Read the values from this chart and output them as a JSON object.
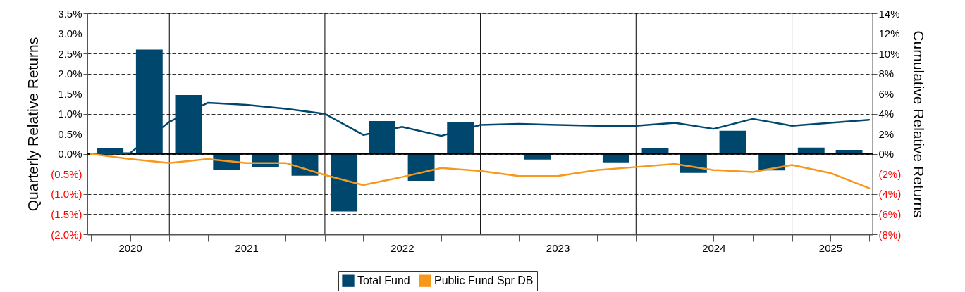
{
  "chart_data": {
    "type": "bar",
    "ylabel": "Quarterly Relative Returns",
    "y2label": "Cumulative Relative Returns",
    "xlim": [
      "2020-07-01",
      "2025-07-01"
    ],
    "xticks": [
      {
        "value": "2020-07-01",
        "label": null
      },
      {
        "value": "2020-10-01",
        "label": "2020"
      },
      {
        "value": "2021-01-01",
        "label": null
      },
      {
        "value": "2021-04-01",
        "label": null
      },
      {
        "value": "2021-07-01",
        "label": "2021"
      },
      {
        "value": "2021-10-01",
        "label": null
      },
      {
        "value": "2022-01-01",
        "label": null
      },
      {
        "value": "2022-04-01",
        "label": null
      },
      {
        "value": "2022-07-01",
        "label": "2022"
      },
      {
        "value": "2022-10-01",
        "label": null
      },
      {
        "value": "2023-01-01",
        "label": null
      },
      {
        "value": "2023-04-01",
        "label": null
      },
      {
        "value": "2023-07-01",
        "label": "2023"
      },
      {
        "value": "2023-10-01",
        "label": null
      },
      {
        "value": "2024-01-01",
        "label": null
      },
      {
        "value": "2024-04-01",
        "label": null
      },
      {
        "value": "2024-07-01",
        "label": "2024"
      },
      {
        "value": "2024-10-01",
        "label": null
      },
      {
        "value": "2025-01-01",
        "label": null
      },
      {
        "value": "2025-04-01",
        "label": "2025"
      },
      {
        "value": "2025-07-01",
        "label": null
      }
    ],
    "ylim": [
      -2,
      3.5
    ],
    "yticks": [
      {
        "value": -2,
        "label": "(2.0%)"
      },
      {
        "value": -1.5,
        "label": "(1.5%)"
      },
      {
        "value": -1,
        "label": "(1.0%)"
      },
      {
        "value": -0.5,
        "label": "(0.5%)"
      },
      {
        "value": 0,
        "label": "0.0%"
      },
      {
        "value": 0.5,
        "label": "0.5%"
      },
      {
        "value": 1,
        "label": "1.0%"
      },
      {
        "value": 1.5,
        "label": "1.5%"
      },
      {
        "value": 2,
        "label": "2.0%"
      },
      {
        "value": 2.5,
        "label": "2.5%"
      },
      {
        "value": 3,
        "label": "3.0%"
      },
      {
        "value": 3.5,
        "label": "3.5%"
      }
    ],
    "y2lim": [
      -8,
      14
    ],
    "y2ticks": [
      {
        "value": -8,
        "label": "(8%)"
      },
      {
        "value": -6,
        "label": "(6%)"
      },
      {
        "value": -4,
        "label": "(4%)"
      },
      {
        "value": -2,
        "label": "(2%)"
      },
      {
        "value": 0,
        "label": "0%"
      },
      {
        "value": 2,
        "label": "2%"
      },
      {
        "value": 4,
        "label": "4%"
      },
      {
        "value": 6,
        "label": "6%"
      },
      {
        "value": 8,
        "label": "8%"
      },
      {
        "value": 10,
        "label": "10%"
      },
      {
        "value": 12,
        "label": "12%"
      },
      {
        "value": 14,
        "label": "14%"
      }
    ],
    "grid": "y",
    "legend": "bottom",
    "ref_lines": [
      {
        "axis": "y",
        "value": 0,
        "color": "#000000"
      },
      {
        "axis": "x",
        "value": "2021-01-01",
        "color": "#000000"
      },
      {
        "axis": "x",
        "value": "2022-01-01",
        "color": "#000000"
      },
      {
        "axis": "x",
        "value": "2023-01-01",
        "color": "#000000"
      },
      {
        "axis": "x",
        "value": "2024-01-01",
        "color": "#000000"
      },
      {
        "axis": "x",
        "value": "2025-01-01",
        "color": "#000000"
      }
    ],
    "series": [
      {
        "name": "Total Fund",
        "color": "#00476e",
        "x": [
          "2020-08-15",
          "2020-11-15",
          "2021-02-15",
          "2021-05-15",
          "2021-08-15",
          "2021-11-15",
          "2022-02-15",
          "2022-05-15",
          "2022-08-15",
          "2022-11-15",
          "2023-02-15",
          "2023-05-15",
          "2023-08-15",
          "2023-11-15",
          "2024-02-15",
          "2024-05-15",
          "2024-08-15",
          "2024-11-15",
          "2025-02-15",
          "2025-05-15"
        ],
        "values": [
          0.15,
          2.6,
          1.47,
          -0.4,
          -0.32,
          -0.54,
          -1.43,
          0.82,
          -0.67,
          0.8,
          0.03,
          -0.14,
          null,
          -0.21,
          0.15,
          -0.47,
          0.58,
          -0.41,
          0.16,
          0.1
        ]
      },
      {
        "type": "line",
        "axis": "y2",
        "color": "#00476e",
        "x": [
          "2020-07-01",
          "2020-10-01",
          "2021-01-01",
          "2021-04-01",
          "2021-07-01",
          "2021-10-01",
          "2022-01-01",
          "2022-04-01",
          "2022-07-01",
          "2022-10-01",
          "2023-01-01",
          "2023-04-01",
          "2023-07-01",
          "2023-10-01",
          "2024-01-01",
          "2024-04-01",
          "2024-07-01",
          "2024-10-01",
          "2025-01-01",
          "2025-04-01",
          "2025-07-01"
        ],
        "values": [
          0,
          0.1,
          3.2,
          5.1,
          4.9,
          4.5,
          4.0,
          1.9,
          2.7,
          1.8,
          2.9,
          3.0,
          2.9,
          2.8,
          2.8,
          3.1,
          2.5,
          3.5,
          2.8,
          3.1,
          3.4
        ]
      },
      {
        "name": "Public Fund Spr DB",
        "type": "line",
        "axis": "y2",
        "color": "#f7981d",
        "x": [
          "2020-07-01",
          "2020-10-01",
          "2021-01-01",
          "2021-04-01",
          "2021-07-01",
          "2021-10-01",
          "2022-01-01",
          "2022-04-01",
          "2022-07-01",
          "2022-10-01",
          "2023-01-01",
          "2023-04-01",
          "2023-07-01",
          "2023-10-01",
          "2024-01-01",
          "2024-04-01",
          "2024-07-01",
          "2024-10-01",
          "2025-01-01",
          "2025-04-01",
          "2025-07-01"
        ],
        "values": [
          0,
          -0.5,
          -0.9,
          -0.5,
          -0.9,
          -0.9,
          -2.1,
          -3.1,
          -2.3,
          -1.4,
          -1.7,
          -2.2,
          -2.2,
          -1.6,
          -1.3,
          -1.0,
          -1.6,
          -1.8,
          -1.1,
          -1.9,
          -3.4
        ]
      }
    ]
  }
}
